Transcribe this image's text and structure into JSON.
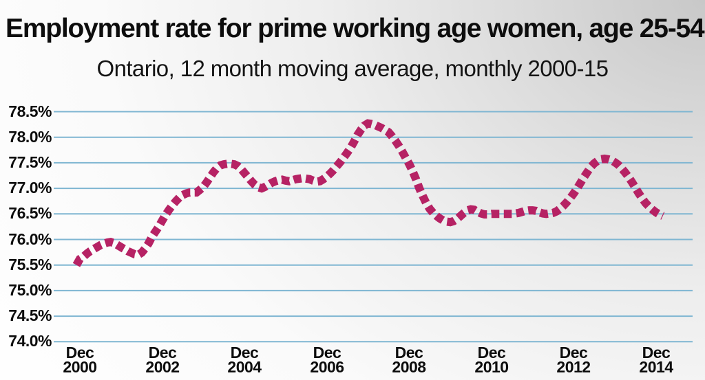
{
  "header": {
    "title": "Employment rate for prime working age women, age 25-54",
    "subtitle": "Ontario, 12 month moving average, monthly 2000-15"
  },
  "chart_data": {
    "type": "line",
    "title": "Employment rate for prime working age women, age 25-54",
    "subtitle": "Ontario, 12 month moving average, monthly 2000-15",
    "xlabel": "",
    "ylabel": "",
    "ylim": [
      74.0,
      78.5
    ],
    "grid": true,
    "legend": false,
    "line_style": "dashed",
    "colors": {
      "line": "#b62264",
      "gridline": "#7fb6d2",
      "text": "#0d0d0d"
    },
    "y_ticks": [
      {
        "value": 78.5,
        "label": "78.5%"
      },
      {
        "value": 78.0,
        "label": "78.0%"
      },
      {
        "value": 77.5,
        "label": "77.5%"
      },
      {
        "value": 77.0,
        "label": "77.0%"
      },
      {
        "value": 76.5,
        "label": "76.5%"
      },
      {
        "value": 76.0,
        "label": "76.0%"
      },
      {
        "value": 75.5,
        "label": "75.5%"
      },
      {
        "value": 75.0,
        "label": "75.0%"
      },
      {
        "value": 74.5,
        "label": "74.5%"
      },
      {
        "value": 74.0,
        "label": "74.0%"
      }
    ],
    "x_ticks": [
      {
        "month": "Dec",
        "year": "2000"
      },
      {
        "month": "Dec",
        "year": "2002"
      },
      {
        "month": "Dec",
        "year": "2004"
      },
      {
        "month": "Dec",
        "year": "2006"
      },
      {
        "month": "Dec",
        "year": "2008"
      },
      {
        "month": "Dec",
        "year": "2010"
      },
      {
        "month": "Dec",
        "year": "2012"
      },
      {
        "month": "Dec",
        "year": "2014"
      }
    ],
    "series": [
      {
        "name": "Employment rate, 12 month moving average (%)",
        "frequency": "monthly",
        "start_month": "2000-11",
        "values": [
          75.5,
          75.62,
          75.66,
          75.72,
          75.77,
          75.81,
          75.85,
          75.89,
          75.92,
          75.94,
          75.95,
          75.93,
          75.89,
          75.85,
          75.81,
          75.77,
          75.74,
          75.71,
          75.7,
          75.74,
          75.82,
          75.92,
          76.05,
          76.15,
          76.25,
          76.37,
          76.48,
          76.58,
          76.67,
          76.75,
          76.82,
          76.87,
          76.9,
          76.92,
          76.92,
          76.92,
          76.97,
          77.03,
          77.12,
          77.22,
          77.32,
          77.4,
          77.45,
          77.47,
          77.48,
          77.48,
          77.47,
          77.44,
          77.38,
          77.3,
          77.22,
          77.14,
          77.07,
          77.02,
          77.0,
          77.03,
          77.07,
          77.11,
          77.14,
          77.16,
          77.17,
          77.15,
          77.14,
          77.16,
          77.18,
          77.19,
          77.2,
          77.19,
          77.18,
          77.15,
          77.13,
          77.14,
          77.18,
          77.23,
          77.29,
          77.36,
          77.44,
          77.52,
          77.61,
          77.7,
          77.8,
          77.92,
          78.05,
          78.15,
          78.23,
          78.27,
          78.26,
          78.24,
          78.21,
          78.18,
          78.14,
          78.1,
          78.02,
          77.93,
          77.83,
          77.72,
          77.6,
          77.48,
          77.34,
          77.18,
          77.0,
          76.85,
          76.71,
          76.6,
          76.52,
          76.46,
          76.41,
          76.37,
          76.35,
          76.34,
          76.36,
          76.4,
          76.46,
          76.52,
          76.57,
          76.59,
          76.58,
          76.54,
          76.51,
          76.49,
          76.49,
          76.5,
          76.5,
          76.5,
          76.5,
          76.5,
          76.5,
          76.5,
          76.51,
          76.52,
          76.54,
          76.56,
          76.57,
          76.57,
          76.56,
          76.53,
          76.51,
          76.5,
          76.51,
          76.52,
          76.55,
          76.6,
          76.66,
          76.73,
          76.81,
          76.9,
          77.0,
          77.11,
          77.22,
          77.32,
          77.42,
          77.49,
          77.54,
          77.57,
          77.58,
          77.57,
          77.55,
          77.51,
          77.46,
          77.39,
          77.31,
          77.22,
          77.12,
          77.01,
          76.9,
          76.8,
          76.71,
          76.64,
          76.58,
          76.53,
          76.49,
          76.46
        ]
      }
    ]
  }
}
